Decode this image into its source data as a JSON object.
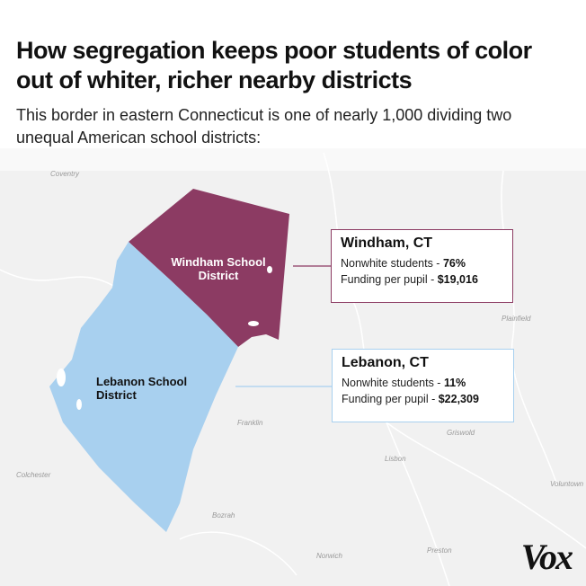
{
  "header": {
    "title": "How segregation keeps poor students of color out of whiter, richer nearby districts",
    "subtitle": "This border in eastern Connecticut is one of nearly 1,000 dividing two unequal American school districts:"
  },
  "districts": [
    {
      "label": "Windham School District",
      "name": "Windham, CT",
      "stats": [
        {
          "label": "Nonwhite students -",
          "value": "76%"
        },
        {
          "label": "Funding per pupil -",
          "value": "$19,016"
        }
      ]
    },
    {
      "label": "Lebanon School District",
      "name": "Lebanon, CT",
      "stats": [
        {
          "label": "Nonwhite students -",
          "value": "11%"
        },
        {
          "label": "Funding per pupil -",
          "value": "$22,309"
        }
      ]
    }
  ],
  "places": [
    "Coventry",
    "Plainfield",
    "Franklin",
    "Griswold",
    "Lisbon",
    "Colchester",
    "Voluntown",
    "Bozrah",
    "Preston",
    "Norwich"
  ],
  "logo": "Vox"
}
